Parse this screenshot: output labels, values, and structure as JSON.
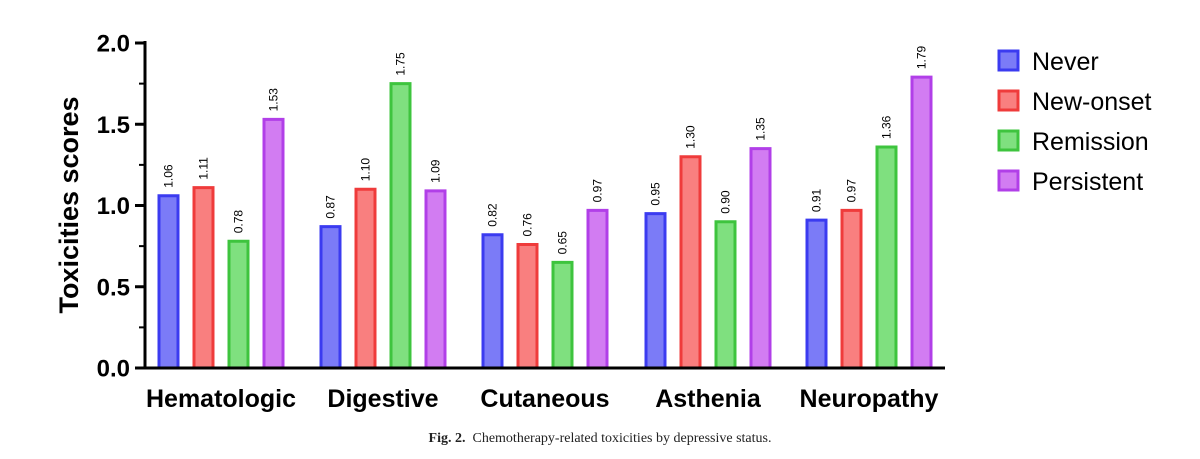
{
  "chart_data": {
    "type": "bar",
    "title": "",
    "xlabel": "",
    "ylabel": "Toxicities scores",
    "ylim": [
      0,
      2.0
    ],
    "yticks": [
      "0.0",
      "0.5",
      "1.0",
      "1.5",
      "2.0"
    ],
    "categories": [
      "Hematologic",
      "Digestive",
      "Cutaneous",
      "Asthenia",
      "Neuropathy"
    ],
    "series": [
      {
        "name": "Never",
        "values": [
          1.06,
          0.87,
          0.82,
          0.95,
          0.91
        ],
        "labels": [
          "1.06",
          "0.87",
          "0.82",
          "0.95",
          "0.91"
        ],
        "fill": "#7b7bf7",
        "stroke": "#3b3bf0"
      },
      {
        "name": "New-onset",
        "values": [
          1.11,
          1.1,
          0.76,
          1.3,
          0.97
        ],
        "labels": [
          "1.11",
          "1.10",
          "0.76",
          "1.30",
          "0.97"
        ],
        "fill": "#f97f7f",
        "stroke": "#ef3b3b"
      },
      {
        "name": "Remission",
        "values": [
          0.78,
          1.75,
          0.65,
          0.9,
          1.36
        ],
        "labels": [
          "0.78",
          "1.75",
          "0.65",
          "0.90",
          "1.36"
        ],
        "fill": "#7fe07f",
        "stroke": "#3ec43e"
      },
      {
        "name": "Persistent",
        "values": [
          1.53,
          1.09,
          0.97,
          1.35,
          1.79
        ],
        "labels": [
          "1.53",
          "1.09",
          "0.97",
          "1.35",
          "1.79"
        ],
        "fill": "#d27cf2",
        "stroke": "#b13fe8"
      }
    ],
    "legend_position": "right"
  },
  "caption": {
    "label": "Fig. 2.",
    "text": "Chemotherapy-related toxicities by depressive status."
  }
}
